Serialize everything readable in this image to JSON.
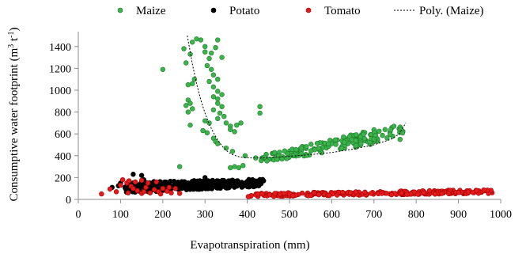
{
  "chart_data": {
    "type": "scatter",
    "xlabel": "Evapotranspiration (mm)",
    "ylabel_main": "Consumptive water footprint  (m",
    "ylabel_sup": "3",
    "ylabel_mid": " t",
    "ylabel_sup2": "-1",
    "ylabel_end": ")",
    "xlim": [
      0,
      1000
    ],
    "ylim": [
      0,
      1500
    ],
    "xticks": [
      0,
      100,
      200,
      300,
      400,
      500,
      600,
      700,
      800,
      900,
      1000
    ],
    "yticks": [
      0,
      200,
      400,
      600,
      800,
      1000,
      1200,
      1400
    ],
    "legend_position": "top",
    "series": [
      {
        "name": "Maize",
        "color": "#3cb44b",
        "edge": "#1e7a2c",
        "clusters": [
          {
            "type": "scatter",
            "points": [
              [
                200,
                1190
              ],
              [
                270,
                1440
              ],
              [
                280,
                1470
              ],
              [
                290,
                1460
              ],
              [
                300,
                1400
              ],
              [
                250,
                1380
              ],
              [
                265,
                1330
              ],
              [
                300,
                1350
              ],
              [
                315,
                1340
              ],
              [
                310,
                1290
              ],
              [
                330,
                1460
              ],
              [
                325,
                1390
              ],
              [
                340,
                1300
              ],
              [
                255,
                1250
              ],
              [
                305,
                1225
              ],
              [
                315,
                1190
              ],
              [
                320,
                1140
              ],
              [
                330,
                1100
              ],
              [
                270,
                1060
              ],
              [
                260,
                1050
              ],
              [
                275,
                1100
              ],
              [
                310,
                1080
              ],
              [
                320,
                1030
              ],
              [
                330,
                990
              ],
              [
                340,
                960
              ],
              [
                320,
                940
              ],
              [
                330,
                920
              ],
              [
                260,
                910
              ],
              [
                265,
                880
              ],
              [
                255,
                860
              ],
              [
                270,
                830
              ],
              [
                260,
                800
              ],
              [
                330,
                880
              ],
              [
                340,
                850
              ],
              [
                320,
                820
              ],
              [
                335,
                790
              ],
              [
                345,
                760
              ],
              [
                330,
                740
              ],
              [
                300,
                720
              ],
              [
                310,
                700
              ],
              [
                265,
                680
              ],
              [
                350,
                700
              ],
              [
                360,
                670
              ],
              [
                375,
                680
              ],
              [
                385,
                700
              ],
              [
                360,
                640
              ],
              [
                370,
                620
              ],
              [
                295,
                630
              ],
              [
                305,
                610
              ],
              [
                320,
                560
              ],
              [
                325,
                530
              ],
              [
                330,
                510
              ],
              [
                350,
                470
              ],
              [
                365,
                440
              ],
              [
                360,
                290
              ],
              [
                370,
                300
              ],
              [
                390,
                310
              ],
              [
                380,
                290
              ],
              [
                240,
                300
              ],
              [
                430,
                850
              ],
              [
                430,
                790
              ],
              [
                395,
                400
              ],
              [
                420,
                380
              ]
            ]
          },
          {
            "type": "band",
            "x0": 430,
            "x1": 770,
            "lo0": 330,
            "lo1": 550,
            "hi0": 400,
            "hi1": 700,
            "count": 170
          }
        ]
      },
      {
        "name": "Potato",
        "color": "#000000",
        "edge": "#000000",
        "clusters": [
          {
            "type": "band",
            "x0": 110,
            "x1": 440,
            "lo0": 60,
            "lo1": 120,
            "hi0": 160,
            "hi1": 185,
            "count": 420
          },
          {
            "type": "scatter",
            "points": [
              [
                130,
                230
              ],
              [
                150,
                220
              ],
              [
                80,
                110
              ],
              [
                100,
                150
              ],
              [
                155,
                180
              ],
              [
                300,
                200
              ],
              [
                95,
                125
              ]
            ]
          }
        ]
      },
      {
        "name": "Tomato",
        "color": "#e41a1c",
        "edge": "#a50000",
        "clusters": [
          {
            "type": "scatter",
            "points": [
              [
                55,
                50
              ],
              [
                75,
                95
              ],
              [
                90,
                70
              ],
              [
                105,
                180
              ],
              [
                115,
                150
              ],
              [
                120,
                170
              ],
              [
                125,
                120
              ],
              [
                130,
                100
              ],
              [
                140,
                80
              ],
              [
                150,
                55
              ],
              [
                155,
                70
              ],
              [
                160,
                110
              ],
              [
                165,
                150
              ],
              [
                170,
                60
              ],
              [
                180,
                90
              ],
              [
                185,
                160
              ],
              [
                190,
                70
              ],
              [
                195,
                50
              ],
              [
                200,
                100
              ],
              [
                210,
                75
              ],
              [
                215,
                110
              ],
              [
                220,
                60
              ],
              [
                230,
                100
              ],
              [
                240,
                55
              ],
              [
                150,
                175
              ],
              [
                135,
                160
              ],
              [
                118,
                60
              ],
              [
                100,
                130
              ]
            ]
          },
          {
            "type": "band",
            "x0": 400,
            "x1": 980,
            "lo0": 25,
            "lo1": 55,
            "hi0": 55,
            "hi1": 90,
            "count": 240
          }
        ]
      },
      {
        "name": "Poly. (Maize)",
        "style": "dotted",
        "color": "#000000",
        "curve": [
          [
            258,
            1500
          ],
          [
            270,
            1240
          ],
          [
            280,
            1060
          ],
          [
            290,
            910
          ],
          [
            300,
            790
          ],
          [
            310,
            690
          ],
          [
            320,
            610
          ],
          [
            330,
            545
          ],
          [
            340,
            490
          ],
          [
            350,
            450
          ],
          [
            360,
            420
          ],
          [
            375,
            395
          ],
          [
            390,
            385
          ],
          [
            410,
            380
          ],
          [
            430,
            380
          ],
          [
            460,
            385
          ],
          [
            500,
            395
          ],
          [
            550,
            410
          ],
          [
            600,
            430
          ],
          [
            650,
            460
          ],
          [
            700,
            500
          ],
          [
            740,
            550
          ],
          [
            760,
            600
          ],
          [
            775,
            700
          ]
        ]
      }
    ]
  }
}
